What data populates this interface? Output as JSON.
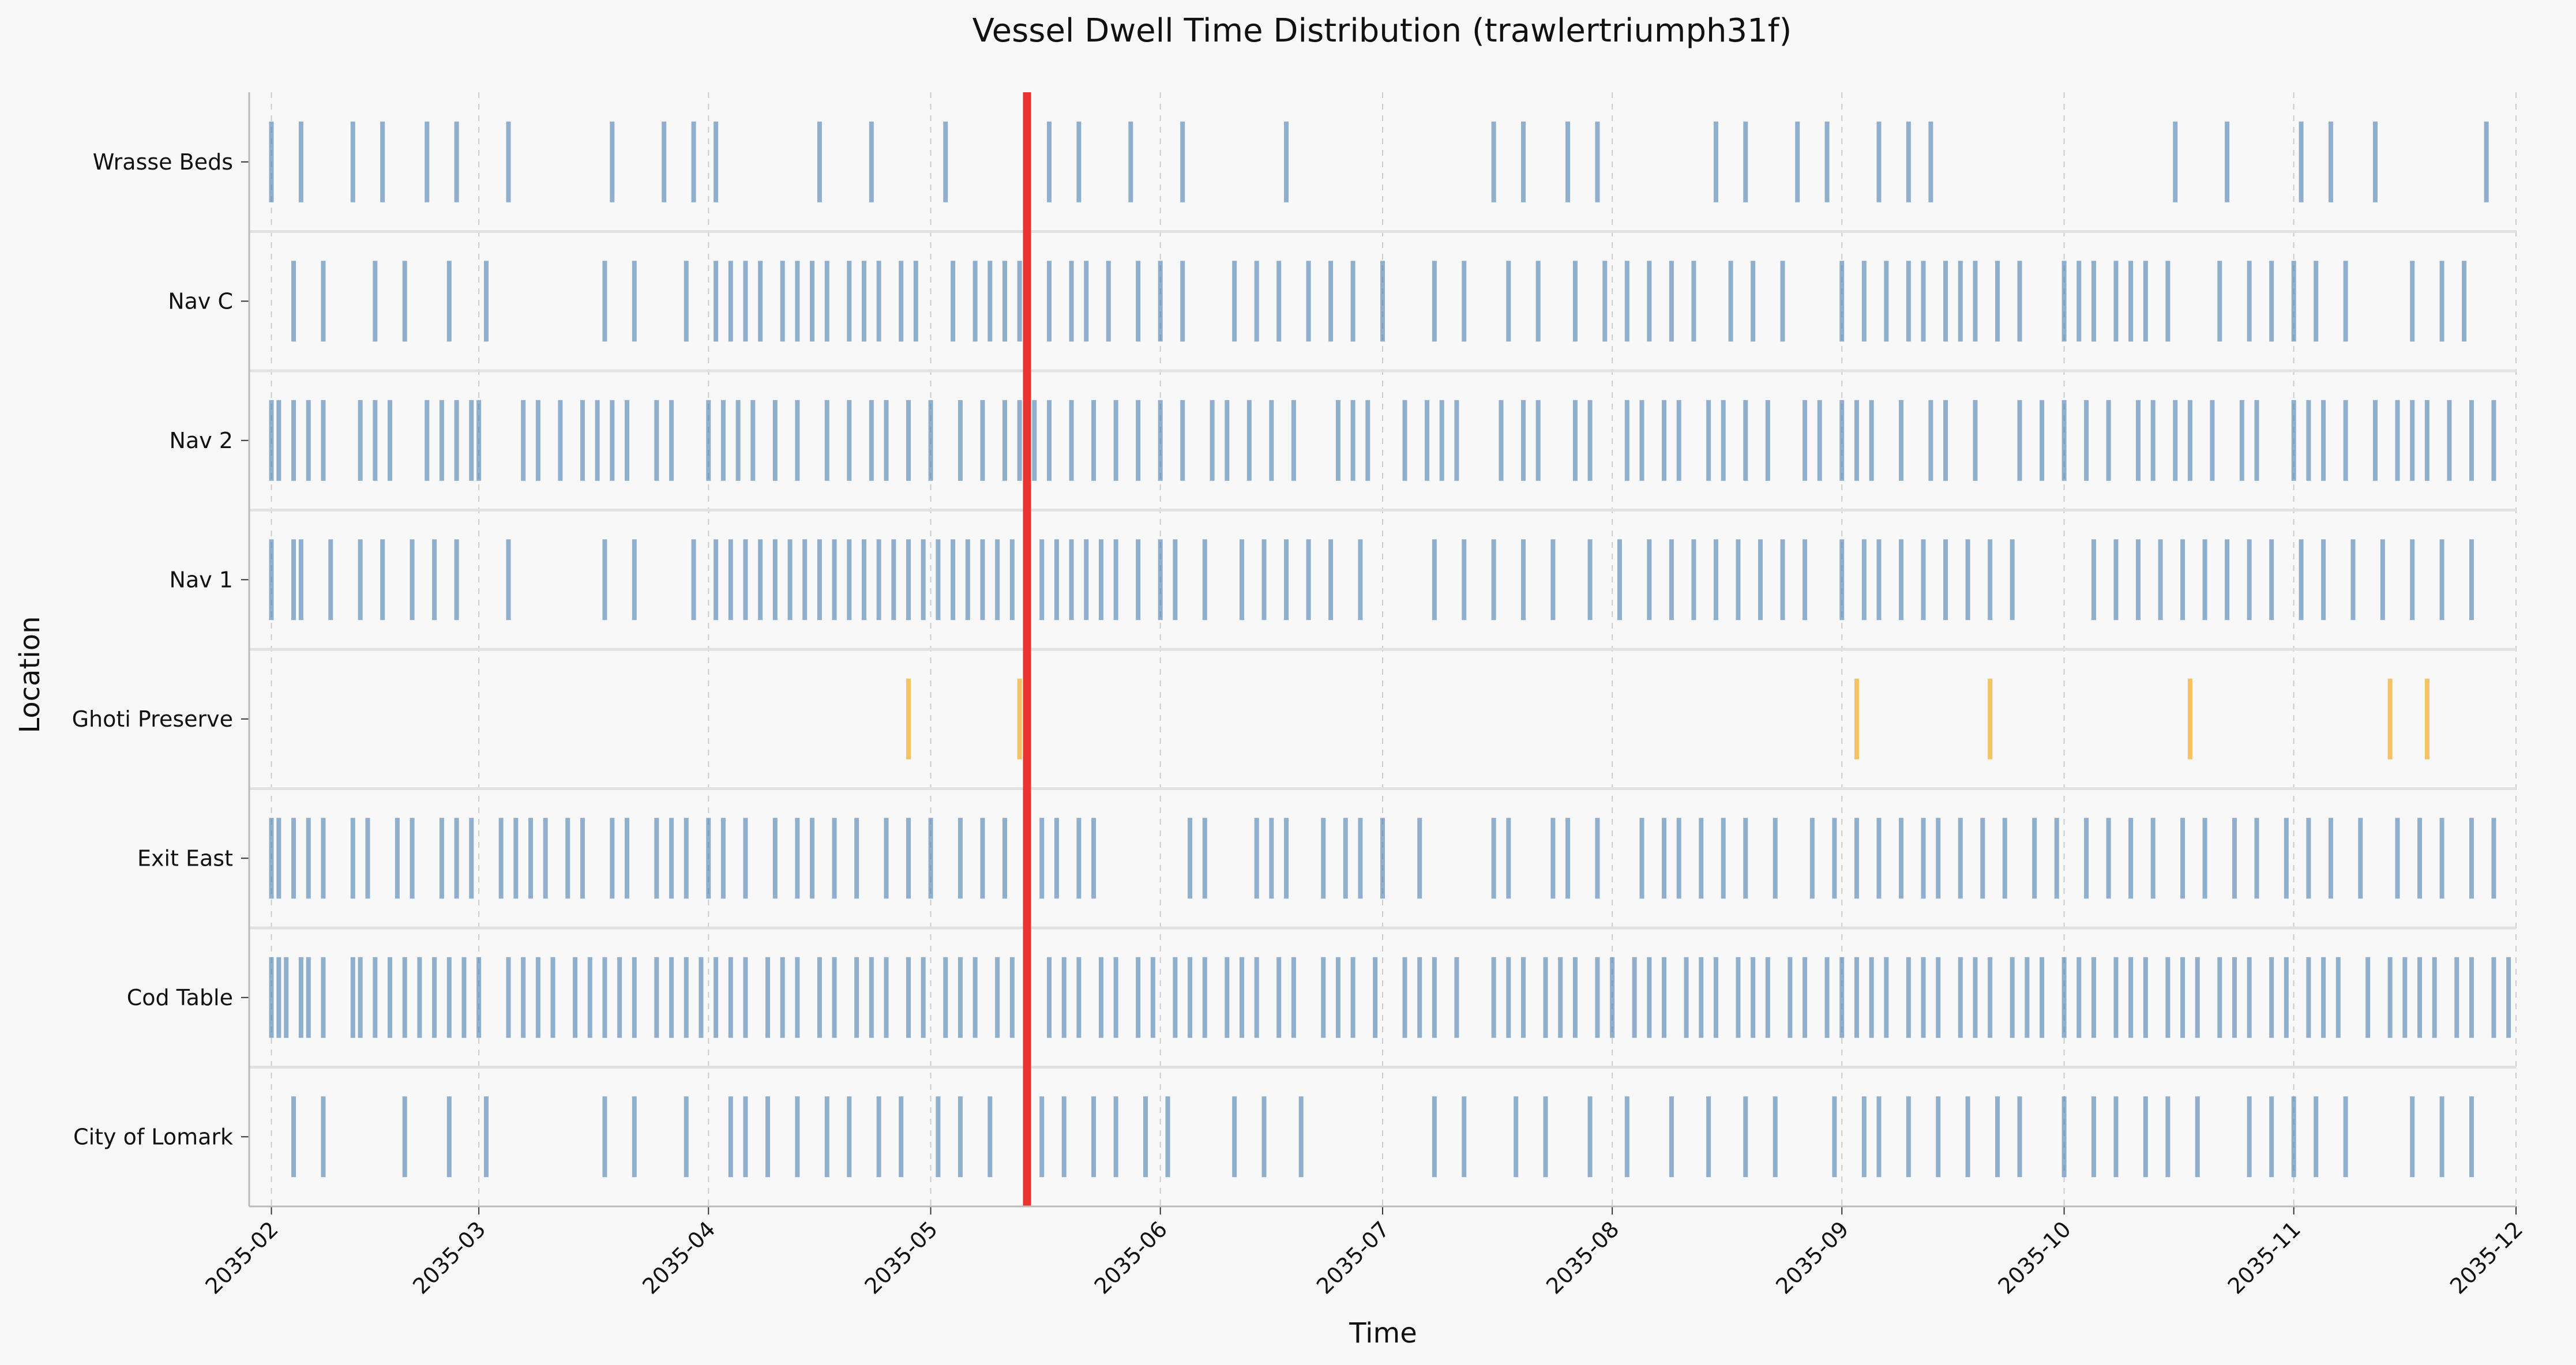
{
  "chart_data": {
    "type": "timeline",
    "title": "Vessel Dwell Time Distribution (trawlertriumph31f)",
    "xlabel": "Time",
    "ylabel": "Location",
    "xlim": [
      "2035-01-29",
      "2035-12-01"
    ],
    "x_ticks": [
      "2035-02",
      "2035-03",
      "2035-04",
      "2035-05",
      "2035-06",
      "2035-07",
      "2035-08",
      "2035-09",
      "2035-10",
      "2035-11",
      "2035-12"
    ],
    "x_tick_dates": [
      "2035-02-01",
      "2035-03-01",
      "2035-04-01",
      "2035-05-01",
      "2035-06-01",
      "2035-07-01",
      "2035-08-01",
      "2035-09-01",
      "2035-10-01",
      "2035-11-01",
      "2035-12-01"
    ],
    "categories": [
      "Wrasse Beds",
      "Nav C",
      "Nav 2",
      "Nav 1",
      "Ghoti Preserve",
      "Exit East",
      "Cod Table",
      "City of Lomark"
    ],
    "grid": true,
    "colors": {
      "events": "#4a7fb0",
      "highlight": "#f5b94a",
      "marker": "#e8332f"
    },
    "marker_line": "2035-05-14",
    "series": [
      {
        "location": "Wrasse Beds",
        "events": [
          "2035-02-01",
          "2035-02-05",
          "2035-02-12",
          "2035-02-16",
          "2035-02-22",
          "2035-02-26",
          "2035-03-05",
          "2035-03-19",
          "2035-03-26",
          "2035-03-30",
          "2035-04-02",
          "2035-04-16",
          "2035-04-23",
          "2035-05-03",
          "2035-05-17",
          "2035-05-21",
          "2035-05-28",
          "2035-06-04",
          "2035-06-18",
          "2035-07-16",
          "2035-07-20",
          "2035-07-26",
          "2035-07-30",
          "2035-08-15",
          "2035-08-19",
          "2035-08-26",
          "2035-08-30",
          "2035-09-06",
          "2035-09-10",
          "2035-09-13",
          "2035-10-16",
          "2035-10-23",
          "2035-11-02",
          "2035-11-06",
          "2035-11-12",
          "2035-11-27"
        ],
        "highlight": []
      },
      {
        "location": "Nav C",
        "events": [
          "2035-02-04",
          "2035-02-08",
          "2035-02-15",
          "2035-02-19",
          "2035-02-25",
          "2035-03-02",
          "2035-03-18",
          "2035-03-22",
          "2035-03-29",
          "2035-04-02",
          "2035-04-04",
          "2035-04-06",
          "2035-04-08",
          "2035-04-11",
          "2035-04-13",
          "2035-04-15",
          "2035-04-17",
          "2035-04-20",
          "2035-04-22",
          "2035-04-24",
          "2035-04-27",
          "2035-04-29",
          "2035-05-04",
          "2035-05-07",
          "2035-05-09",
          "2035-05-11",
          "2035-05-13",
          "2035-05-17",
          "2035-05-20",
          "2035-05-22",
          "2035-05-25",
          "2035-05-29",
          "2035-06-01",
          "2035-06-04",
          "2035-06-11",
          "2035-06-14",
          "2035-06-17",
          "2035-06-21",
          "2035-06-24",
          "2035-06-27",
          "2035-07-01",
          "2035-07-08",
          "2035-07-12",
          "2035-07-18",
          "2035-07-22",
          "2035-07-27",
          "2035-07-31",
          "2035-08-03",
          "2035-08-06",
          "2035-08-09",
          "2035-08-12",
          "2035-08-17",
          "2035-08-20",
          "2035-08-24",
          "2035-09-01",
          "2035-09-04",
          "2035-09-07",
          "2035-09-10",
          "2035-09-12",
          "2035-09-15",
          "2035-09-17",
          "2035-09-19",
          "2035-09-22",
          "2035-09-25",
          "2035-10-01",
          "2035-10-03",
          "2035-10-05",
          "2035-10-08",
          "2035-10-10",
          "2035-10-12",
          "2035-10-15",
          "2035-10-22",
          "2035-10-26",
          "2035-10-29",
          "2035-11-01",
          "2035-11-04",
          "2035-11-08",
          "2035-11-17",
          "2035-11-21",
          "2035-11-24"
        ],
        "highlight": []
      },
      {
        "location": "Nav 2",
        "events": [
          "2035-02-01",
          "2035-02-02",
          "2035-02-04",
          "2035-02-06",
          "2035-02-08",
          "2035-02-13",
          "2035-02-15",
          "2035-02-17",
          "2035-02-22",
          "2035-02-24",
          "2035-02-26",
          "2035-02-28",
          "2035-03-01",
          "2035-03-07",
          "2035-03-09",
          "2035-03-12",
          "2035-03-15",
          "2035-03-17",
          "2035-03-19",
          "2035-03-21",
          "2035-03-25",
          "2035-03-27",
          "2035-04-01",
          "2035-04-03",
          "2035-04-05",
          "2035-04-07",
          "2035-04-10",
          "2035-04-13",
          "2035-04-17",
          "2035-04-20",
          "2035-04-23",
          "2035-04-25",
          "2035-04-28",
          "2035-05-01",
          "2035-05-05",
          "2035-05-08",
          "2035-05-11",
          "2035-05-13",
          "2035-05-15",
          "2035-05-17",
          "2035-05-20",
          "2035-05-23",
          "2035-05-26",
          "2035-05-29",
          "2035-06-01",
          "2035-06-04",
          "2035-06-08",
          "2035-06-10",
          "2035-06-13",
          "2035-06-16",
          "2035-06-19",
          "2035-06-25",
          "2035-06-27",
          "2035-06-29",
          "2035-07-04",
          "2035-07-07",
          "2035-07-09",
          "2035-07-11",
          "2035-07-17",
          "2035-07-20",
          "2035-07-22",
          "2035-07-27",
          "2035-07-29",
          "2035-08-03",
          "2035-08-05",
          "2035-08-08",
          "2035-08-10",
          "2035-08-14",
          "2035-08-16",
          "2035-08-19",
          "2035-08-22",
          "2035-08-27",
          "2035-08-29",
          "2035-09-01",
          "2035-09-03",
          "2035-09-05",
          "2035-09-09",
          "2035-09-13",
          "2035-09-15",
          "2035-09-19",
          "2035-09-25",
          "2035-09-28",
          "2035-10-01",
          "2035-10-04",
          "2035-10-07",
          "2035-10-11",
          "2035-10-13",
          "2035-10-16",
          "2035-10-18",
          "2035-10-21",
          "2035-10-25",
          "2035-10-27",
          "2035-11-01",
          "2035-11-03",
          "2035-11-05",
          "2035-11-08",
          "2035-11-12",
          "2035-11-15",
          "2035-11-17",
          "2035-11-19",
          "2035-11-22",
          "2035-11-25",
          "2035-11-28"
        ],
        "highlight": []
      },
      {
        "location": "Nav 1",
        "events": [
          "2035-02-01",
          "2035-02-04",
          "2035-02-05",
          "2035-02-09",
          "2035-02-13",
          "2035-02-16",
          "2035-02-20",
          "2035-02-23",
          "2035-02-26",
          "2035-03-05",
          "2035-03-18",
          "2035-03-22",
          "2035-03-30",
          "2035-04-02",
          "2035-04-04",
          "2035-04-06",
          "2035-04-08",
          "2035-04-10",
          "2035-04-12",
          "2035-04-14",
          "2035-04-16",
          "2035-04-18",
          "2035-04-20",
          "2035-04-22",
          "2035-04-24",
          "2035-04-26",
          "2035-04-28",
          "2035-04-30",
          "2035-05-02",
          "2035-05-04",
          "2035-05-06",
          "2035-05-08",
          "2035-05-10",
          "2035-05-12",
          "2035-05-16",
          "2035-05-18",
          "2035-05-20",
          "2035-05-22",
          "2035-05-24",
          "2035-05-26",
          "2035-05-29",
          "2035-06-01",
          "2035-06-03",
          "2035-06-07",
          "2035-06-12",
          "2035-06-15",
          "2035-06-18",
          "2035-06-21",
          "2035-06-24",
          "2035-06-28",
          "2035-07-08",
          "2035-07-12",
          "2035-07-16",
          "2035-07-20",
          "2035-07-24",
          "2035-07-29",
          "2035-08-02",
          "2035-08-06",
          "2035-08-09",
          "2035-08-12",
          "2035-08-15",
          "2035-08-18",
          "2035-08-21",
          "2035-08-24",
          "2035-08-27",
          "2035-09-01",
          "2035-09-04",
          "2035-09-06",
          "2035-09-09",
          "2035-09-12",
          "2035-09-15",
          "2035-09-18",
          "2035-09-21",
          "2035-09-24",
          "2035-10-05",
          "2035-10-08",
          "2035-10-11",
          "2035-10-14",
          "2035-10-17",
          "2035-10-20",
          "2035-10-23",
          "2035-10-26",
          "2035-10-29",
          "2035-11-02",
          "2035-11-05",
          "2035-11-09",
          "2035-11-13",
          "2035-11-17",
          "2035-11-21",
          "2035-11-25"
        ],
        "highlight": []
      },
      {
        "location": "Ghoti Preserve",
        "events": [],
        "highlight": [
          "2035-04-28",
          "2035-05-13",
          "2035-09-03",
          "2035-09-21",
          "2035-10-18",
          "2035-11-14",
          "2035-11-19"
        ]
      },
      {
        "location": "Exit East",
        "events": [
          "2035-02-01",
          "2035-02-02",
          "2035-02-04",
          "2035-02-06",
          "2035-02-08",
          "2035-02-12",
          "2035-02-14",
          "2035-02-18",
          "2035-02-20",
          "2035-02-24",
          "2035-02-26",
          "2035-02-28",
          "2035-03-04",
          "2035-03-06",
          "2035-03-08",
          "2035-03-10",
          "2035-03-13",
          "2035-03-15",
          "2035-03-19",
          "2035-03-21",
          "2035-03-25",
          "2035-03-27",
          "2035-03-29",
          "2035-04-01",
          "2035-04-03",
          "2035-04-06",
          "2035-04-10",
          "2035-04-13",
          "2035-04-15",
          "2035-04-18",
          "2035-04-21",
          "2035-04-25",
          "2035-04-28",
          "2035-05-01",
          "2035-05-05",
          "2035-05-08",
          "2035-05-11",
          "2035-05-16",
          "2035-05-18",
          "2035-05-21",
          "2035-05-23",
          "2035-06-05",
          "2035-06-07",
          "2035-06-14",
          "2035-06-16",
          "2035-06-18",
          "2035-06-23",
          "2035-06-26",
          "2035-06-28",
          "2035-07-01",
          "2035-07-06",
          "2035-07-16",
          "2035-07-18",
          "2035-07-24",
          "2035-07-26",
          "2035-07-30",
          "2035-08-05",
          "2035-08-08",
          "2035-08-10",
          "2035-08-13",
          "2035-08-16",
          "2035-08-19",
          "2035-08-23",
          "2035-08-28",
          "2035-08-31",
          "2035-09-03",
          "2035-09-06",
          "2035-09-09",
          "2035-09-12",
          "2035-09-14",
          "2035-09-17",
          "2035-09-20",
          "2035-09-23",
          "2035-09-27",
          "2035-09-30",
          "2035-10-04",
          "2035-10-07",
          "2035-10-10",
          "2035-10-13",
          "2035-10-17",
          "2035-10-20",
          "2035-10-24",
          "2035-10-27",
          "2035-10-31",
          "2035-11-03",
          "2035-11-06",
          "2035-11-10",
          "2035-11-15",
          "2035-11-18",
          "2035-11-21",
          "2035-11-25",
          "2035-11-28"
        ],
        "highlight": []
      },
      {
        "location": "Cod Table",
        "events": [
          "2035-02-01",
          "2035-02-02",
          "2035-02-03",
          "2035-02-05",
          "2035-02-06",
          "2035-02-08",
          "2035-02-12",
          "2035-02-13",
          "2035-02-15",
          "2035-02-17",
          "2035-02-19",
          "2035-02-21",
          "2035-02-23",
          "2035-02-25",
          "2035-02-27",
          "2035-03-01",
          "2035-03-05",
          "2035-03-07",
          "2035-03-09",
          "2035-03-11",
          "2035-03-14",
          "2035-03-16",
          "2035-03-18",
          "2035-03-20",
          "2035-03-22",
          "2035-03-25",
          "2035-03-27",
          "2035-03-29",
          "2035-03-31",
          "2035-04-02",
          "2035-04-04",
          "2035-04-06",
          "2035-04-09",
          "2035-04-11",
          "2035-04-13",
          "2035-04-16",
          "2035-04-18",
          "2035-04-21",
          "2035-04-23",
          "2035-04-25",
          "2035-04-28",
          "2035-04-30",
          "2035-05-03",
          "2035-05-05",
          "2035-05-07",
          "2035-05-10",
          "2035-05-12",
          "2035-05-14",
          "2035-05-17",
          "2035-05-19",
          "2035-05-21",
          "2035-05-24",
          "2035-05-26",
          "2035-05-29",
          "2035-05-31",
          "2035-06-03",
          "2035-06-05",
          "2035-06-07",
          "2035-06-10",
          "2035-06-12",
          "2035-06-14",
          "2035-06-17",
          "2035-06-19",
          "2035-06-23",
          "2035-06-25",
          "2035-06-27",
          "2035-06-30",
          "2035-07-04",
          "2035-07-06",
          "2035-07-08",
          "2035-07-11",
          "2035-07-16",
          "2035-07-18",
          "2035-07-20",
          "2035-07-23",
          "2035-07-25",
          "2035-07-27",
          "2035-07-30",
          "2035-08-01",
          "2035-08-04",
          "2035-08-06",
          "2035-08-08",
          "2035-08-11",
          "2035-08-13",
          "2035-08-15",
          "2035-08-18",
          "2035-08-20",
          "2035-08-22",
          "2035-08-25",
          "2035-08-27",
          "2035-08-30",
          "2035-09-01",
          "2035-09-03",
          "2035-09-05",
          "2035-09-07",
          "2035-09-10",
          "2035-09-12",
          "2035-09-14",
          "2035-09-17",
          "2035-09-19",
          "2035-09-21",
          "2035-09-24",
          "2035-09-26",
          "2035-09-28",
          "2035-10-01",
          "2035-10-03",
          "2035-10-05",
          "2035-10-08",
          "2035-10-10",
          "2035-10-12",
          "2035-10-15",
          "2035-10-17",
          "2035-10-19",
          "2035-10-22",
          "2035-10-24",
          "2035-10-26",
          "2035-10-29",
          "2035-10-31",
          "2035-11-03",
          "2035-11-05",
          "2035-11-07",
          "2035-11-11",
          "2035-11-14",
          "2035-11-16",
          "2035-11-18",
          "2035-11-20",
          "2035-11-23",
          "2035-11-25",
          "2035-11-28",
          "2035-11-30"
        ],
        "highlight": []
      },
      {
        "location": "City of Lomark",
        "events": [
          "2035-02-04",
          "2035-02-08",
          "2035-02-19",
          "2035-02-25",
          "2035-03-02",
          "2035-03-18",
          "2035-03-22",
          "2035-03-29",
          "2035-04-04",
          "2035-04-06",
          "2035-04-09",
          "2035-04-13",
          "2035-04-17",
          "2035-04-20",
          "2035-04-24",
          "2035-04-27",
          "2035-05-02",
          "2035-05-05",
          "2035-05-09",
          "2035-05-16",
          "2035-05-19",
          "2035-05-23",
          "2035-05-26",
          "2035-05-30",
          "2035-06-02",
          "2035-06-11",
          "2035-06-15",
          "2035-06-20",
          "2035-07-08",
          "2035-07-12",
          "2035-07-19",
          "2035-07-23",
          "2035-07-29",
          "2035-08-03",
          "2035-08-09",
          "2035-08-14",
          "2035-08-19",
          "2035-08-23",
          "2035-08-31",
          "2035-09-04",
          "2035-09-06",
          "2035-09-10",
          "2035-09-14",
          "2035-09-18",
          "2035-09-22",
          "2035-09-25",
          "2035-10-01",
          "2035-10-05",
          "2035-10-08",
          "2035-10-12",
          "2035-10-15",
          "2035-10-19",
          "2035-10-26",
          "2035-10-29",
          "2035-11-01",
          "2035-11-04",
          "2035-11-08",
          "2035-11-17",
          "2035-11-21",
          "2035-11-25"
        ],
        "highlight": []
      }
    ]
  }
}
